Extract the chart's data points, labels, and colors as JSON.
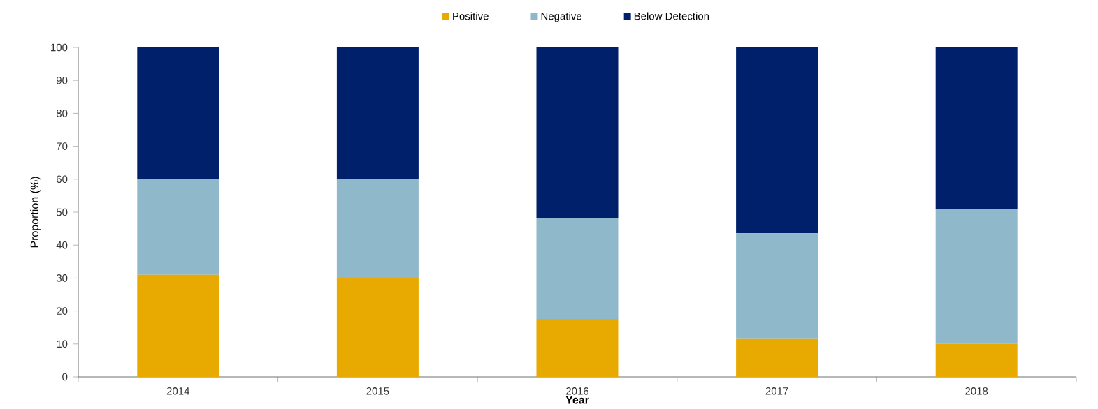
{
  "chart_data": {
    "type": "bar",
    "stacked": true,
    "ylabel": "Proportion (%)",
    "xlabel": "Year",
    "categories": [
      "2014",
      "2015",
      "2016",
      "2017",
      "2018"
    ],
    "series": [
      {
        "name": "Positive",
        "color": "#e8a900",
        "values": [
          31,
          30,
          17.6,
          11.7,
          10
        ]
      },
      {
        "name": "Negative",
        "color": "#8fb8ca",
        "values": [
          29,
          30,
          30.7,
          31.9,
          41
        ]
      },
      {
        "name": "Below Detection",
        "color": "#00206b",
        "values": [
          40,
          40,
          51.7,
          56.4,
          49
        ]
      }
    ],
    "ylim": [
      0,
      100
    ],
    "yticks": [
      0,
      10,
      20,
      30,
      40,
      50,
      60,
      70,
      80,
      90,
      100
    ],
    "grid": false,
    "legend": "top"
  }
}
